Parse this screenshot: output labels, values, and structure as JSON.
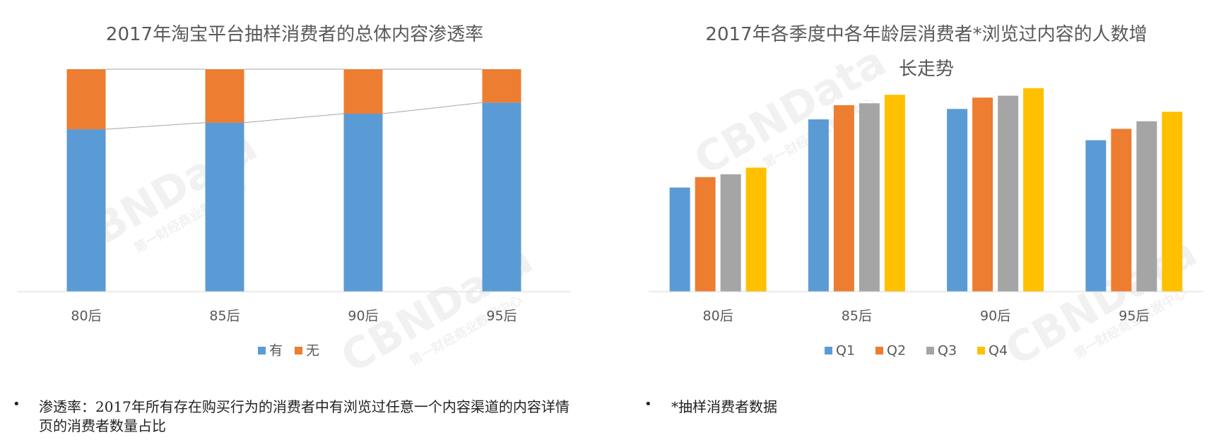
{
  "chart_data": [
    {
      "type": "stacked_bar",
      "title": "2017年淘宝平台抽样消费者的总体内容渗透率",
      "categories": [
        "80后",
        "85后",
        "90后",
        "95后"
      ],
      "series": [
        {
          "name": "有",
          "color": "#5b9bd5",
          "values": [
            73,
            76,
            80,
            85
          ]
        },
        {
          "name": "无",
          "color": "#ed7d31",
          "values": [
            27,
            24,
            20,
            15
          ]
        }
      ],
      "ylim": [
        0,
        100
      ],
      "connector_lines": true,
      "legend": "bottom"
    },
    {
      "type": "bar",
      "title": "2017年各季度中各年龄层消费者*浏览过内容的人数增长走势",
      "categories": [
        "80后",
        "85后",
        "90后",
        "95后"
      ],
      "series": [
        {
          "name": "Q1",
          "color": "#5b9bd5",
          "values": [
            110,
            182,
            193,
            160
          ]
        },
        {
          "name": "Q2",
          "color": "#ed7d31",
          "values": [
            121,
            197,
            205,
            172
          ]
        },
        {
          "name": "Q3",
          "color": "#a5a5a5",
          "values": [
            124,
            199,
            207,
            180
          ]
        },
        {
          "name": "Q4",
          "color": "#ffc000",
          "values": [
            131,
            208,
            215,
            190
          ]
        }
      ],
      "ylim": [
        0,
        235
      ],
      "legend": "bottom"
    }
  ],
  "notes": [
    "渗透率：2017年所有存在购买行为的消费者中有浏览过任意一个内容渠道的内容详情页的消费者数量占比",
    "*抽样消费者数据"
  ],
  "watermark": {
    "logo": "CBNData",
    "sub": "第一财经商业数据中心"
  }
}
